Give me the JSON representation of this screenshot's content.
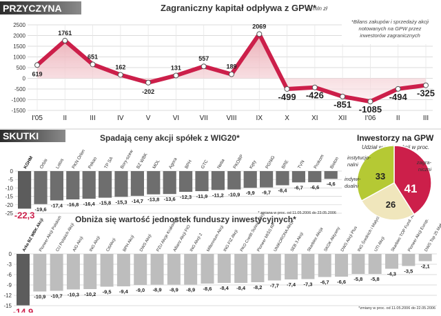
{
  "colors": {
    "accent": "#cc1f4a",
    "dark_bar": "#5c5c5c",
    "light_bar": "#bdbdbd",
    "pie_green": "#b5c934",
    "pie_cream": "#f0e6bc",
    "pie_pink": "#f3c8c8",
    "grid": "#cfcfcf",
    "header_bg": "#3a3a3a"
  },
  "sections": {
    "przyczyna": "PRZYCZYNA",
    "skutki": "SKUTKI"
  },
  "chart_data": [
    {
      "id": "capital-flow",
      "type": "line",
      "title": "Zagraniczny kapitał odpływa z GPW*",
      "unit": "w mln zł",
      "note": "*Bilans zakupów i sprzedaży akcji notowanych na GPW przez inwestorów zagranicznych",
      "note_lines": [
        "*Bilans zakupów i sprzedaży akcji",
        "notowanych na GPW przez",
        "inwestorów zagranicznych"
      ],
      "categories": [
        "I'05",
        "II",
        "III",
        "IV",
        "V",
        "VI",
        "VII",
        "VIII",
        "IX",
        "X",
        "XI",
        "XII",
        "I'06",
        "II",
        "III"
      ],
      "values": [
        619,
        1761,
        651,
        162,
        -202,
        131,
        557,
        189,
        2069,
        -499,
        -426,
        -851,
        -1085,
        -494,
        -325
      ],
      "value_labels": [
        "619",
        "1761",
        "651",
        "162",
        "-202",
        "131",
        "557",
        "189",
        "2069",
        "-499",
        "-426",
        "-851",
        "-1085",
        "-494",
        "-325"
      ],
      "ylim": [
        -1500,
        2500
      ],
      "yticks": [
        2500,
        2000,
        1500,
        1000,
        500,
        0,
        -500,
        -1000,
        -1500
      ],
      "ytick_labels": [
        "2500",
        "2000",
        "1500",
        "1000",
        "500",
        "0",
        "-500",
        "-1000",
        "-1500"
      ],
      "grid": true
    },
    {
      "id": "wig20-stocks",
      "type": "bar",
      "title": "Spadają ceny akcji spółek z WIG20*",
      "footnote": "* zmiana w proc. od 11.05.2006 do 23.05.2006",
      "categories": [
        "KGHM",
        "Orbis",
        "Lotos",
        "PKN Orlen",
        "Pekao",
        "TP SA",
        "Bory-szew",
        "BZ WBK",
        "MOL",
        "Agora",
        "BPH",
        "GTC",
        "Netia",
        "PKOBP",
        "Kęty",
        "PGNiG",
        "BRE",
        "TVN",
        "Prokom",
        "Bioton"
      ],
      "values": [
        -22.3,
        -19.6,
        -17.4,
        -16.8,
        -16.4,
        -15.8,
        -15.3,
        -14.7,
        -13.8,
        -13.6,
        -12.3,
        -11.9,
        -11.2,
        -10.9,
        -9.9,
        -9.7,
        -8.4,
        -6.7,
        -6.6,
        -4.6
      ],
      "value_labels": [
        "-22,3",
        "-19,6",
        "-17,4",
        "-16,8",
        "-16,4",
        "-15,8",
        "-15,3",
        "-14,7",
        "-13,8",
        "-13,6",
        "-12,3",
        "-11,9",
        "-11,2",
        "-10,9",
        "-9,9",
        "-9,7",
        "-8,4",
        "-6,7",
        "-6,6",
        "-4,6"
      ],
      "ylim": [
        -25,
        0
      ],
      "yticks": [
        0,
        -5,
        -10,
        -15,
        -20,
        -25
      ],
      "ytick_labels": [
        "0",
        "-5",
        "-10",
        "-15",
        "-20",
        "-25"
      ],
      "grid": true
    },
    {
      "id": "investors-pie",
      "type": "pie",
      "title": "Inwestorzy na GPW",
      "subtitle": "Udział w rynku akcji w proc.",
      "slices": [
        {
          "name": "zagraniczni",
          "value": 41,
          "label": "41"
        },
        {
          "name": "indywidualni",
          "value": 26,
          "label": "26"
        },
        {
          "name": "instytucjonalni",
          "value": 33,
          "label": "33"
        }
      ],
      "slice_name_lines": {
        "zagraniczni": [
          "zagra-",
          "niczni"
        ],
        "indywidualni": [
          "indywi-",
          "dualni"
        ],
        "instytucjonalni": [
          "instytucjo-",
          "nalni"
        ]
      }
    },
    {
      "id": "funds",
      "type": "bar",
      "title": "Obniża się wartość jednostek funduszy inwestycyjnych*",
      "footnote": "*zmiany w proc. od 11.05.2006 do 22.05.2006",
      "categories": [
        "Arka BZ WBK Akcji",
        "Pioneer Akcji Polskich",
        "CU Polskich Akcji",
        "AIG Akcji",
        "ING Akcji",
        "CitiAkcji",
        "BPH Akcji",
        "DWS Akcji",
        "PZU Akcje Krakowiak",
        "Allianz Akcji FIO",
        "ING Akcji 2",
        "Millennium Akcji",
        "ING FIZ Akcji",
        "PKO Credit Suisse Akcji",
        "Pioneer MIŚS RP",
        "UNIKORONA Akcje",
        "SEB 3 Akcji",
        "Skarbiec Akcja",
        "SKOK Aktywny",
        "DWS Akcji Plus",
        "ING Średnich i Małych Sp.",
        "UTI Akcji",
        "Skarbiec TOP Fund. Akcji",
        "Pioneer Akcji Europ.",
        "DWS Top 25 Małych Sp."
      ],
      "values": [
        -14.9,
        -10.9,
        -10.7,
        -10.3,
        -10.2,
        -9.5,
        -9.4,
        -9.0,
        -8.9,
        -8.9,
        -8.9,
        -8.6,
        -8.4,
        -8.4,
        -8.2,
        -7.7,
        -7.4,
        -7.3,
        -6.7,
        -6.6,
        -5.8,
        -5.8,
        -4.3,
        -3.5,
        -2.1
      ],
      "value_labels": [
        "-14,9",
        "-10,9",
        "-10,7",
        "-10,3",
        "-10,2",
        "-9,5",
        "-9,4",
        "-9,0",
        "-8,9",
        "-8,9",
        "-8,9",
        "-8,6",
        "-8,4",
        "-8,4",
        "-8,2",
        "-7,7",
        "-7,4",
        "-7,3",
        "-6,7",
        "-6,6",
        "-5,8",
        "-5,8",
        "-4,3",
        "-3,5",
        "-2,1"
      ],
      "ylim": [
        -15,
        0
      ],
      "yticks": [
        0,
        -3,
        -6,
        -9,
        -12,
        -15
      ],
      "ytick_labels": [
        "0",
        "-3",
        "-6",
        "-9",
        "-12",
        "-15"
      ],
      "grid": true
    }
  ]
}
